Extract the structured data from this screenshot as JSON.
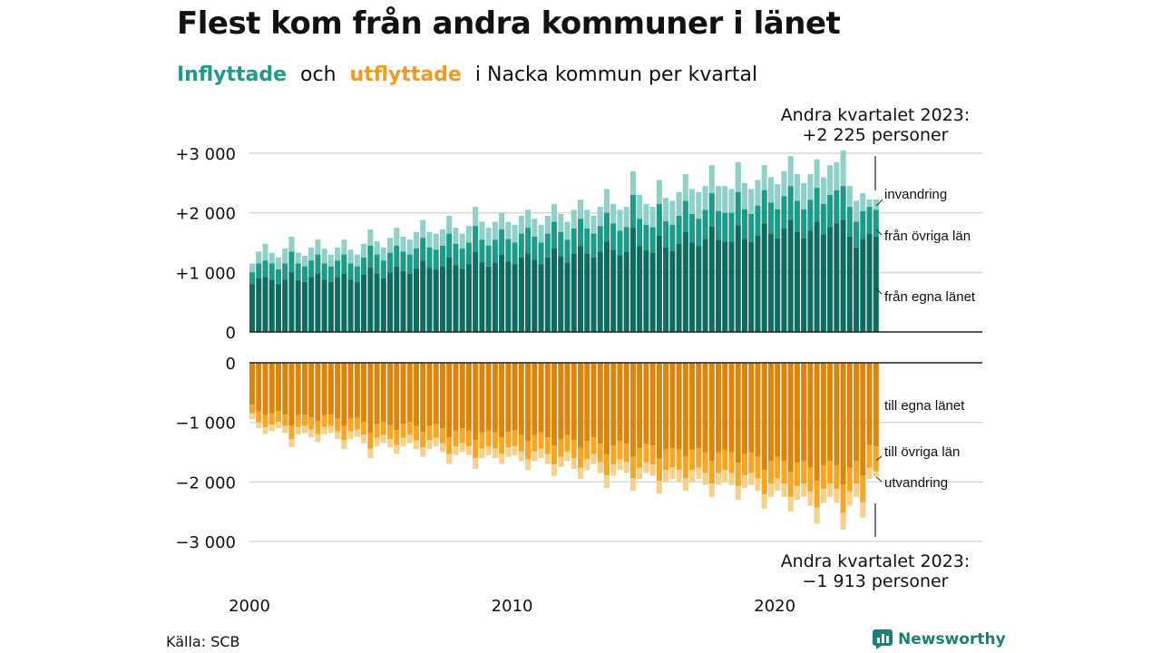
{
  "title": "Flest kom från andra kommuner i länet",
  "subtitle": {
    "inflow": "Inflyttade",
    "and": "och",
    "outflow": "utflyttade",
    "rest": "i Nacka  kommun  per  kvartal"
  },
  "callout_top": {
    "line1": "Andra kvartalet 2023:",
    "line2": "+2 225 personer"
  },
  "callout_bottom": {
    "line1": "Andra kvartalet 2023:",
    "line2": "−1 913 personer"
  },
  "source": "Källa: SCB",
  "brand": "Newsworthy",
  "colors": {
    "in_own": "#0e6b5f",
    "in_other": "#1d9a8a",
    "in_abroad": "#8fd1c6",
    "out_own": "#d9860f",
    "out_other": "#f5a623",
    "out_abroad": "#f7d08a",
    "grid": "#d9d9d9"
  },
  "chart_data": {
    "type": "bar",
    "stacked": true,
    "x_start": "2000 Q1",
    "x_end": "2023 Q2",
    "x_ticks": [
      "2000",
      "2010",
      "2020"
    ],
    "top_panel": {
      "y_ticks": [
        "0",
        "+1 000",
        "+2 000",
        "+3 000"
      ],
      "ylim": [
        0,
        3000
      ],
      "series_labels": [
        "från egna länet",
        "från övriga län",
        "invandring"
      ]
    },
    "bottom_panel": {
      "y_ticks": [
        "0",
        "−1 000",
        "−2 000",
        "−3 000"
      ],
      "ylim": [
        -3000,
        0
      ],
      "series_labels": [
        "till egna länet",
        "till övriga län",
        "utvandring"
      ]
    },
    "inflow_total": [
      1150,
      1350,
      1480,
      1330,
      1250,
      1400,
      1600,
      1330,
      1280,
      1420,
      1550,
      1400,
      1300,
      1420,
      1550,
      1380,
      1300,
      1480,
      1720,
      1520,
      1420,
      1580,
      1750,
      1600,
      1550,
      1680,
      1880,
      1680,
      1650,
      1720,
      1950,
      1750,
      1650,
      1780,
      2100,
      1850,
      1750,
      1850,
      2000,
      1850,
      1800,
      1950,
      2050,
      1900,
      1800,
      1950,
      2150,
      1980,
      1850,
      2050,
      2220,
      2050,
      1950,
      2100,
      2400,
      2150,
      2050,
      2100,
      2700,
      2300,
      2150,
      2100,
      2550,
      2250,
      2200,
      2350,
      2650,
      2400,
      2350,
      2450,
      2800,
      2450,
      2450,
      2400,
      2850,
      2500,
      2400,
      2550,
      2800,
      2600,
      2480,
      2700,
      2950,
      2650,
      2500,
      2650,
      2900,
      2600,
      2800,
      2850,
      3050,
      2450,
      2200,
      2330,
      2225,
      2225
    ],
    "inflow_other": [
      1000,
      1150,
      1200,
      1150,
      1050,
      1150,
      1350,
      1150,
      1100,
      1200,
      1300,
      1150,
      1100,
      1200,
      1300,
      1150,
      1100,
      1250,
      1450,
      1300,
      1200,
      1330,
      1450,
      1350,
      1300,
      1400,
      1580,
      1420,
      1380,
      1450,
      1650,
      1480,
      1400,
      1500,
      1780,
      1550,
      1450,
      1550,
      1720,
      1560,
      1500,
      1650,
      1750,
      1600,
      1500,
      1650,
      1850,
      1680,
      1550,
      1740,
      1900,
      1740,
      1650,
      1780,
      2000,
      1820,
      1700,
      1760,
      2300,
      1900,
      1800,
      1760,
      2150,
      1860,
      1800,
      1950,
      2200,
      1980,
      1900,
      2050,
      2330,
      2030,
      2000,
      2000,
      2350,
      2060,
      1980,
      2120,
      2380,
      2170,
      2060,
      2280,
      2450,
      2200,
      2060,
      2220,
      2420,
      2150,
      2300,
      2380,
      2450,
      2100,
      1850,
      2030,
      2100,
      2050
    ],
    "inflow_own": [
      800,
      900,
      920,
      880,
      800,
      880,
      1000,
      870,
      840,
      920,
      980,
      880,
      840,
      920,
      980,
      880,
      840,
      960,
      1080,
      980,
      900,
      1000,
      1100,
      1020,
      980,
      1060,
      1200,
      1080,
      1050,
      1100,
      1250,
      1120,
      1060,
      1140,
      1340,
      1170,
      1100,
      1170,
      1300,
      1180,
      1140,
      1250,
      1320,
      1210,
      1140,
      1250,
      1400,
      1270,
      1170,
      1310,
      1440,
      1320,
      1250,
      1350,
      1520,
      1380,
      1290,
      1340,
      1750,
      1440,
      1370,
      1330,
      1620,
      1420,
      1360,
      1480,
      1680,
      1500,
      1440,
      1560,
      1770,
      1550,
      1520,
      1520,
      1790,
      1560,
      1510,
      1620,
      1820,
      1650,
      1570,
      1740,
      1880,
      1680,
      1570,
      1700,
      1850,
      1640,
      1760,
      1820,
      1880,
      1600,
      1420,
      1560,
      1650,
      1600
    ],
    "outflow_total": [
      -950,
      -1100,
      -1200,
      -1150,
      -1100,
      -1180,
      -1420,
      -1200,
      -1180,
      -1250,
      -1330,
      -1200,
      -1180,
      -1280,
      -1450,
      -1280,
      -1250,
      -1350,
      -1600,
      -1400,
      -1350,
      -1420,
      -1530,
      -1400,
      -1350,
      -1450,
      -1580,
      -1450,
      -1400,
      -1500,
      -1700,
      -1550,
      -1500,
      -1550,
      -1780,
      -1600,
      -1550,
      -1600,
      -1700,
      -1580,
      -1550,
      -1650,
      -1800,
      -1650,
      -1600,
      -1700,
      -1900,
      -1750,
      -1650,
      -1780,
      -1950,
      -1800,
      -1700,
      -1850,
      -2100,
      -1900,
      -1800,
      -1850,
      -2150,
      -1950,
      -1850,
      -1900,
      -2200,
      -2000,
      -1950,
      -2000,
      -2150,
      -2000,
      -1950,
      -2050,
      -2250,
      -2050,
      -2000,
      -2050,
      -2300,
      -2100,
      -2050,
      -2150,
      -2450,
      -2250,
      -2150,
      -2250,
      -2500,
      -2300,
      -2250,
      -2400,
      -2700,
      -2350,
      -2250,
      -2350,
      -2800,
      -2400,
      -2250,
      -2600,
      -1950,
      -1913
    ],
    "outflow_other": [
      -850,
      -1000,
      -1080,
      -1040,
      -990,
      -1060,
      -1280,
      -1080,
      -1060,
      -1120,
      -1200,
      -1080,
      -1060,
      -1150,
      -1300,
      -1150,
      -1120,
      -1210,
      -1440,
      -1260,
      -1210,
      -1280,
      -1380,
      -1260,
      -1210,
      -1300,
      -1420,
      -1300,
      -1260,
      -1350,
      -1530,
      -1400,
      -1350,
      -1400,
      -1600,
      -1440,
      -1400,
      -1440,
      -1530,
      -1420,
      -1400,
      -1490,
      -1620,
      -1490,
      -1440,
      -1530,
      -1710,
      -1580,
      -1490,
      -1600,
      -1760,
      -1620,
      -1530,
      -1670,
      -1890,
      -1710,
      -1620,
      -1670,
      -1940,
      -1760,
      -1670,
      -1710,
      -1980,
      -1800,
      -1760,
      -1800,
      -1940,
      -1800,
      -1760,
      -1850,
      -2030,
      -1850,
      -1800,
      -1850,
      -2070,
      -1890,
      -1850,
      -1940,
      -2210,
      -2030,
      -1940,
      -2030,
      -2250,
      -2070,
      -2030,
      -2160,
      -2430,
      -2120,
      -2030,
      -2120,
      -2520,
      -2160,
      -2030,
      -2340,
      -1760,
      -1820
    ],
    "outflow_own": [
      -700,
      -820,
      -880,
      -850,
      -810,
      -870,
      -1050,
      -880,
      -870,
      -920,
      -980,
      -880,
      -870,
      -940,
      -1060,
      -940,
      -920,
      -990,
      -1180,
      -1030,
      -990,
      -1050,
      -1130,
      -1030,
      -990,
      -1060,
      -1160,
      -1060,
      -1030,
      -1100,
      -1250,
      -1140,
      -1100,
      -1140,
      -1300,
      -1170,
      -1140,
      -1170,
      -1250,
      -1160,
      -1140,
      -1210,
      -1320,
      -1210,
      -1170,
      -1250,
      -1390,
      -1290,
      -1210,
      -1300,
      -1430,
      -1320,
      -1250,
      -1360,
      -1540,
      -1390,
      -1320,
      -1360,
      -1580,
      -1430,
      -1360,
      -1390,
      -1610,
      -1460,
      -1430,
      -1460,
      -1580,
      -1460,
      -1430,
      -1500,
      -1650,
      -1500,
      -1460,
      -1500,
      -1680,
      -1530,
      -1500,
      -1580,
      -1800,
      -1650,
      -1580,
      -1650,
      -1830,
      -1680,
      -1650,
      -1760,
      -1980,
      -1720,
      -1650,
      -1720,
      -2050,
      -1760,
      -1650,
      -1900,
      -1380,
      -1400
    ]
  }
}
